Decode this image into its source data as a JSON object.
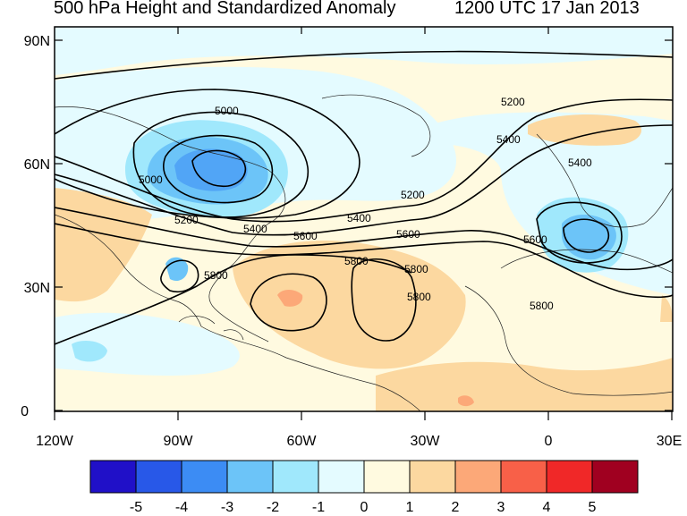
{
  "title_left": "500 hPa Height and Standardized Anomaly",
  "title_right": "1200 UTC 17 Jan 2013",
  "lat_ticks": [
    "90N",
    "60N",
    "30N",
    "0"
  ],
  "lon_ticks": [
    "120W",
    "90W",
    "60W",
    "30W",
    "0",
    "30E"
  ],
  "colorbar": {
    "labels": [
      "-5",
      "-4",
      "-3",
      "-2",
      "-1",
      "0",
      "1",
      "2",
      "3",
      "4",
      "5"
    ],
    "colors": [
      "#2010c8",
      "#2858e8",
      "#3c8cf4",
      "#6cc4f8",
      "#a0e8fc",
      "#e4fbff",
      "#fffae0",
      "#fcd8a0",
      "#fca878",
      "#f86048",
      "#f02828",
      "#a00020"
    ]
  },
  "contour_labels": [
    "5000",
    "5000",
    "5200",
    "5200",
    "5200",
    "5400",
    "5400",
    "5400",
    "5400",
    "5600",
    "5600",
    "5600",
    "5800",
    "5800",
    "5800",
    "5800",
    "5800"
  ]
}
